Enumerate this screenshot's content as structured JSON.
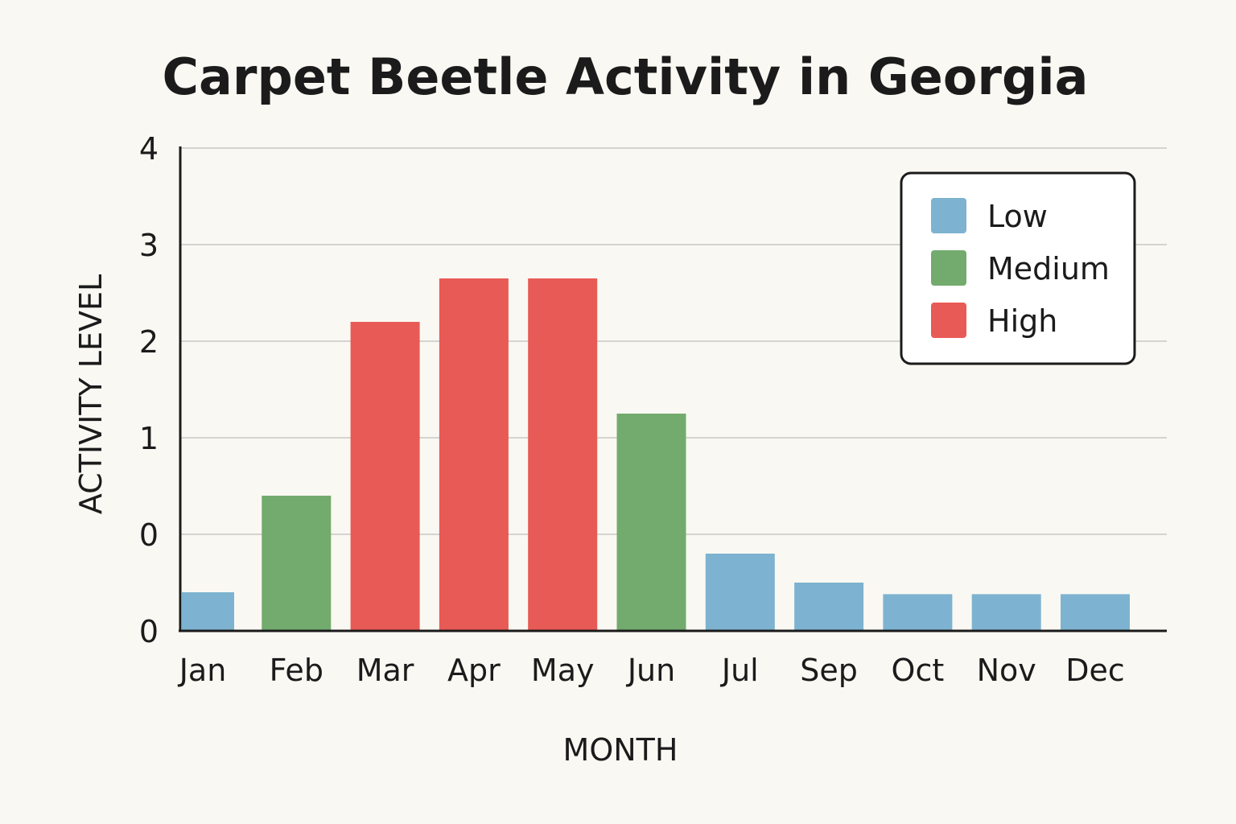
{
  "chart_data": {
    "type": "bar",
    "title": "Carpet Beetle Activity in Georgia",
    "xlabel": "MONTH",
    "ylabel": "ACTIVITY LEVEL",
    "categories": [
      "Jan",
      "Feb",
      "Mar",
      "Apr",
      "May",
      "Jun",
      "Jul",
      "Sep",
      "Oct",
      "Nov",
      "Dec"
    ],
    "values": [
      0.4,
      1.4,
      3.2,
      3.65,
      3.65,
      2.25,
      0.8,
      0.5,
      0.38,
      0.38,
      0.38
    ],
    "levels": [
      "Low",
      "Medium",
      "High",
      "High",
      "High",
      "Medium",
      "Low",
      "Low",
      "Low",
      "Low",
      "Low"
    ],
    "y_tick_labels": [
      "0",
      "0",
      "1",
      "2",
      "3",
      "4"
    ],
    "ylim": [
      0,
      4
    ],
    "grid": true,
    "legend": {
      "placement": "top-right",
      "entries": [
        {
          "name": "Low",
          "color": "#7db3d0"
        },
        {
          "name": "Medium",
          "color": "#72ab6d"
        },
        {
          "name": "High",
          "color": "#e85a55"
        }
      ]
    }
  }
}
